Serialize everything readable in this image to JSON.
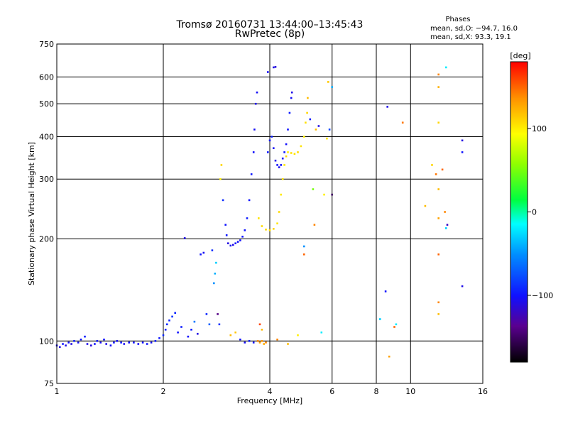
{
  "title_line1": "Tromsø 20160731 13:44:00–13:45:43",
  "title_line2": "RwPretec (8p)",
  "phases_box": {
    "heading": "Phases",
    "line1": "mean, sd,O: −94.7, 16.0",
    "line2": "mean, sd,X:  93.3, 19.1"
  },
  "colorbar": {
    "label": "[deg]",
    "range": [
      -180,
      180
    ],
    "ticks": [
      100,
      0,
      -100
    ],
    "tick_labels": [
      "100",
      "0",
      "−100"
    ]
  },
  "chart_data": {
    "type": "scatter",
    "title": "Tromsø 20160731 13:44:00–13:45:43",
    "subtitle": "RwPretec (8p)",
    "xlabel": "Frequency [MHz]",
    "ylabel": "Stationary phase Virtual Height [km]",
    "x_scale": "log",
    "y_scale": "log",
    "xlim": [
      1,
      16
    ],
    "ylim": [
      75,
      750
    ],
    "x_ticks": [
      1,
      2,
      4,
      6,
      8,
      10,
      16
    ],
    "x_tick_labels": [
      "1",
      "2",
      "4",
      "6",
      "8",
      "10",
      "16"
    ],
    "y_ticks": [
      75,
      100,
      200,
      300,
      400,
      500,
      600,
      750
    ],
    "y_tick_labels": [
      "75",
      "100",
      "200",
      "300",
      "400",
      "500",
      "600",
      "750"
    ],
    "grid": true,
    "color_scale": "phase in degrees (-180 to 180)",
    "points": [
      {
        "x": 1.0,
        "y": 97,
        "p": -105
      },
      {
        "x": 1.02,
        "y": 96,
        "p": -110
      },
      {
        "x": 1.04,
        "y": 98,
        "p": -100
      },
      {
        "x": 1.06,
        "y": 97,
        "p": -108
      },
      {
        "x": 1.08,
        "y": 99,
        "p": -102
      },
      {
        "x": 1.1,
        "y": 98,
        "p": -110
      },
      {
        "x": 1.12,
        "y": 100,
        "p": -95
      },
      {
        "x": 1.15,
        "y": 99,
        "p": -104
      },
      {
        "x": 1.17,
        "y": 101,
        "p": -100
      },
      {
        "x": 1.2,
        "y": 103,
        "p": -96
      },
      {
        "x": 1.22,
        "y": 98,
        "p": -108
      },
      {
        "x": 1.25,
        "y": 97,
        "p": -112
      },
      {
        "x": 1.28,
        "y": 98,
        "p": -100
      },
      {
        "x": 1.3,
        "y": 100,
        "p": -98
      },
      {
        "x": 1.33,
        "y": 99,
        "p": -105
      },
      {
        "x": 1.36,
        "y": 101,
        "p": -101
      },
      {
        "x": 1.38,
        "y": 98,
        "p": -108
      },
      {
        "x": 1.42,
        "y": 97,
        "p": -103
      },
      {
        "x": 1.45,
        "y": 99,
        "p": -100
      },
      {
        "x": 1.48,
        "y": 100,
        "p": -104
      },
      {
        "x": 1.52,
        "y": 99,
        "p": -98
      },
      {
        "x": 1.55,
        "y": 98,
        "p": -106
      },
      {
        "x": 1.6,
        "y": 99,
        "p": -102
      },
      {
        "x": 1.65,
        "y": 99,
        "p": -100
      },
      {
        "x": 1.7,
        "y": 98,
        "p": -103
      },
      {
        "x": 1.75,
        "y": 99,
        "p": -101
      },
      {
        "x": 1.8,
        "y": 98,
        "p": -99
      },
      {
        "x": 1.85,
        "y": 99,
        "p": -104
      },
      {
        "x": 1.9,
        "y": 100,
        "p": -95
      },
      {
        "x": 1.95,
        "y": 102,
        "p": -98
      },
      {
        "x": 2.0,
        "y": 104,
        "p": -92
      },
      {
        "x": 2.03,
        "y": 108,
        "p": -96
      },
      {
        "x": 2.05,
        "y": 112,
        "p": -90
      },
      {
        "x": 2.08,
        "y": 115,
        "p": -94
      },
      {
        "x": 2.12,
        "y": 118,
        "p": -88
      },
      {
        "x": 2.16,
        "y": 121,
        "p": -93
      },
      {
        "x": 2.2,
        "y": 106,
        "p": -100
      },
      {
        "x": 2.25,
        "y": 110,
        "p": -96
      },
      {
        "x": 2.3,
        "y": 201,
        "p": -108
      },
      {
        "x": 2.35,
        "y": 103,
        "p": -102
      },
      {
        "x": 2.4,
        "y": 108,
        "p": -96
      },
      {
        "x": 2.45,
        "y": 114,
        "p": -60
      },
      {
        "x": 2.5,
        "y": 105,
        "p": -110
      },
      {
        "x": 2.55,
        "y": 180,
        "p": -100
      },
      {
        "x": 2.6,
        "y": 182,
        "p": -104
      },
      {
        "x": 2.65,
        "y": 120,
        "p": -92
      },
      {
        "x": 2.7,
        "y": 112,
        "p": -70
      },
      {
        "x": 2.75,
        "y": 185,
        "p": -90
      },
      {
        "x": 2.78,
        "y": 148,
        "p": -50
      },
      {
        "x": 2.8,
        "y": 158,
        "p": -40
      },
      {
        "x": 2.82,
        "y": 170,
        "p": -30
      },
      {
        "x": 2.85,
        "y": 120,
        "p": -140
      },
      {
        "x": 2.88,
        "y": 112,
        "p": -88
      },
      {
        "x": 2.9,
        "y": 300,
        "p": 100
      },
      {
        "x": 2.92,
        "y": 330,
        "p": 110
      },
      {
        "x": 2.95,
        "y": 260,
        "p": -90
      },
      {
        "x": 3.0,
        "y": 220,
        "p": -100
      },
      {
        "x": 3.02,
        "y": 205,
        "p": -98
      },
      {
        "x": 3.05,
        "y": 194,
        "p": -110
      },
      {
        "x": 3.1,
        "y": 191,
        "p": -105
      },
      {
        "x": 3.15,
        "y": 192,
        "p": -108
      },
      {
        "x": 3.2,
        "y": 194,
        "p": -100
      },
      {
        "x": 3.25,
        "y": 196,
        "p": -104
      },
      {
        "x": 3.3,
        "y": 198,
        "p": -102
      },
      {
        "x": 3.35,
        "y": 203,
        "p": -98
      },
      {
        "x": 3.4,
        "y": 212,
        "p": -100
      },
      {
        "x": 3.45,
        "y": 230,
        "p": -96
      },
      {
        "x": 3.5,
        "y": 260,
        "p": -100
      },
      {
        "x": 3.55,
        "y": 310,
        "p": -98
      },
      {
        "x": 3.6,
        "y": 360,
        "p": -102
      },
      {
        "x": 3.62,
        "y": 420,
        "p": -104
      },
      {
        "x": 3.65,
        "y": 500,
        "p": -108
      },
      {
        "x": 3.68,
        "y": 540,
        "p": -104
      },
      {
        "x": 3.1,
        "y": 104,
        "p": 120
      },
      {
        "x": 3.2,
        "y": 106,
        "p": 115
      },
      {
        "x": 3.3,
        "y": 101,
        "p": -100
      },
      {
        "x": 3.4,
        "y": 99,
        "p": -104
      },
      {
        "x": 3.5,
        "y": 100,
        "p": -96
      },
      {
        "x": 3.6,
        "y": 99,
        "p": -102
      },
      {
        "x": 3.7,
        "y": 100,
        "p": 140
      },
      {
        "x": 3.75,
        "y": 99,
        "p": 130
      },
      {
        "x": 3.8,
        "y": 100,
        "p": 135
      },
      {
        "x": 3.85,
        "y": 98,
        "p": 125
      },
      {
        "x": 3.9,
        "y": 99,
        "p": 140
      },
      {
        "x": 3.75,
        "y": 112,
        "p": 160
      },
      {
        "x": 3.8,
        "y": 108,
        "p": 120
      },
      {
        "x": 3.72,
        "y": 230,
        "p": 105
      },
      {
        "x": 3.8,
        "y": 218,
        "p": 108
      },
      {
        "x": 3.9,
        "y": 213,
        "p": 110
      },
      {
        "x": 4.0,
        "y": 212,
        "p": 106
      },
      {
        "x": 4.1,
        "y": 214,
        "p": 110
      },
      {
        "x": 4.2,
        "y": 222,
        "p": 104
      },
      {
        "x": 4.25,
        "y": 240,
        "p": 108
      },
      {
        "x": 4.3,
        "y": 270,
        "p": 102
      },
      {
        "x": 4.35,
        "y": 300,
        "p": 106
      },
      {
        "x": 4.4,
        "y": 330,
        "p": 104
      },
      {
        "x": 4.45,
        "y": 350,
        "p": 108
      },
      {
        "x": 4.5,
        "y": 360,
        "p": 102
      },
      {
        "x": 4.6,
        "y": 358,
        "p": 106
      },
      {
        "x": 4.7,
        "y": 356,
        "p": 104
      },
      {
        "x": 4.8,
        "y": 360,
        "p": 108
      },
      {
        "x": 4.9,
        "y": 375,
        "p": 104
      },
      {
        "x": 5.0,
        "y": 400,
        "p": 100
      },
      {
        "x": 5.05,
        "y": 440,
        "p": 106
      },
      {
        "x": 5.1,
        "y": 470,
        "p": 110
      },
      {
        "x": 5.12,
        "y": 520,
        "p": 120
      },
      {
        "x": 3.95,
        "y": 360,
        "p": -98
      },
      {
        "x": 4.0,
        "y": 390,
        "p": -100
      },
      {
        "x": 4.05,
        "y": 400,
        "p": -96
      },
      {
        "x": 4.1,
        "y": 370,
        "p": -104
      },
      {
        "x": 4.15,
        "y": 340,
        "p": -108
      },
      {
        "x": 4.2,
        "y": 330,
        "p": -102
      },
      {
        "x": 4.25,
        "y": 325,
        "p": -106
      },
      {
        "x": 4.3,
        "y": 330,
        "p": -100
      },
      {
        "x": 4.35,
        "y": 345,
        "p": -104
      },
      {
        "x": 4.4,
        "y": 360,
        "p": -98
      },
      {
        "x": 4.45,
        "y": 380,
        "p": -102
      },
      {
        "x": 4.5,
        "y": 420,
        "p": -100
      },
      {
        "x": 4.55,
        "y": 470,
        "p": -96
      },
      {
        "x": 4.6,
        "y": 520,
        "p": -104
      },
      {
        "x": 4.62,
        "y": 540,
        "p": -108
      },
      {
        "x": 4.1,
        "y": 640,
        "p": -110
      },
      {
        "x": 4.15,
        "y": 642,
        "p": -112
      },
      {
        "x": 3.95,
        "y": 620,
        "p": -104
      },
      {
        "x": 4.2,
        "y": 101,
        "p": 140
      },
      {
        "x": 4.5,
        "y": 98,
        "p": 120
      },
      {
        "x": 4.8,
        "y": 104,
        "p": 100
      },
      {
        "x": 5.0,
        "y": 180,
        "p": 150
      },
      {
        "x": 5.0,
        "y": 190,
        "p": -50
      },
      {
        "x": 5.2,
        "y": 450,
        "p": -96
      },
      {
        "x": 5.3,
        "y": 280,
        "p": 50
      },
      {
        "x": 5.35,
        "y": 220,
        "p": 140
      },
      {
        "x": 5.4,
        "y": 420,
        "p": 120
      },
      {
        "x": 5.5,
        "y": 430,
        "p": -110
      },
      {
        "x": 5.6,
        "y": 106,
        "p": -20
      },
      {
        "x": 5.7,
        "y": 270,
        "p": 100
      },
      {
        "x": 5.8,
        "y": 395,
        "p": 105
      },
      {
        "x": 5.85,
        "y": 580,
        "p": 115
      },
      {
        "x": 5.9,
        "y": 420,
        "p": -80
      },
      {
        "x": 6.0,
        "y": 270,
        "p": -150
      },
      {
        "x": 6.0,
        "y": 560,
        "p": -40
      },
      {
        "x": 8.2,
        "y": 116,
        "p": -30
      },
      {
        "x": 8.5,
        "y": 140,
        "p": -100
      },
      {
        "x": 8.6,
        "y": 490,
        "p": -108
      },
      {
        "x": 8.7,
        "y": 90,
        "p": 130
      },
      {
        "x": 9.0,
        "y": 110,
        "p": 150
      },
      {
        "x": 9.1,
        "y": 112,
        "p": -20
      },
      {
        "x": 9.5,
        "y": 440,
        "p": 145
      },
      {
        "x": 11.0,
        "y": 250,
        "p": 120
      },
      {
        "x": 11.5,
        "y": 330,
        "p": 110
      },
      {
        "x": 11.8,
        "y": 310,
        "p": 145
      },
      {
        "x": 12.0,
        "y": 440,
        "p": 110
      },
      {
        "x": 12.0,
        "y": 560,
        "p": 125
      },
      {
        "x": 12.0,
        "y": 610,
        "p": 140
      },
      {
        "x": 12.0,
        "y": 280,
        "p": 120
      },
      {
        "x": 12.0,
        "y": 230,
        "p": 130
      },
      {
        "x": 12.0,
        "y": 180,
        "p": 150
      },
      {
        "x": 12.0,
        "y": 130,
        "p": 140
      },
      {
        "x": 12.0,
        "y": 120,
        "p": 120
      },
      {
        "x": 12.3,
        "y": 320,
        "p": 150
      },
      {
        "x": 12.5,
        "y": 240,
        "p": 140
      },
      {
        "x": 12.6,
        "y": 640,
        "p": -20
      },
      {
        "x": 12.6,
        "y": 215,
        "p": -30
      },
      {
        "x": 12.7,
        "y": 220,
        "p": -120
      },
      {
        "x": 14.0,
        "y": 390,
        "p": -110
      },
      {
        "x": 14.0,
        "y": 360,
        "p": -100
      },
      {
        "x": 14.0,
        "y": 145,
        "p": -108
      }
    ]
  }
}
